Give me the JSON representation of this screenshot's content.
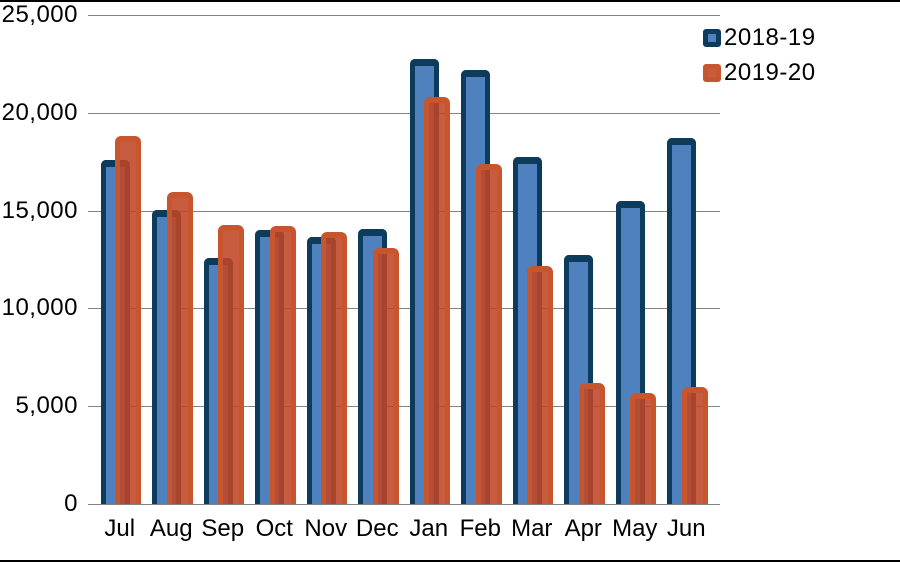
{
  "chart_data": {
    "type": "bar",
    "title": "",
    "xlabel": "",
    "ylabel": "",
    "grid": true,
    "legend_position": "top-right",
    "ylim": [
      0,
      25000
    ],
    "ytick_labels": [
      "25,000",
      "20,000",
      "15,000",
      "10,000",
      "5,000",
      "0"
    ],
    "categories": [
      "Jul",
      "Aug",
      "Sep",
      "Oct",
      "Nov",
      "Dec",
      "Jan",
      "Feb",
      "Mar",
      "Apr",
      "May",
      "Jun"
    ],
    "series": [
      {
        "name": "2018-19",
        "fill": "#4E81BD",
        "border": "#0C3B5B",
        "values": [
          17600,
          15050,
          12600,
          14000,
          13650,
          14050,
          22750,
          22200,
          17750,
          12750,
          15500,
          18700
        ]
      },
      {
        "name": "2019-20",
        "fill": "rgba(191,70,37,0.88)",
        "border": "#C7562E",
        "values": [
          18800,
          15950,
          14250,
          14200,
          13900,
          13100,
          20800,
          17400,
          12150,
          6200,
          5700,
          6000
        ]
      }
    ],
    "colors": {
      "gridline": "#848484",
      "text": "#000000",
      "frame": "#000000"
    }
  }
}
